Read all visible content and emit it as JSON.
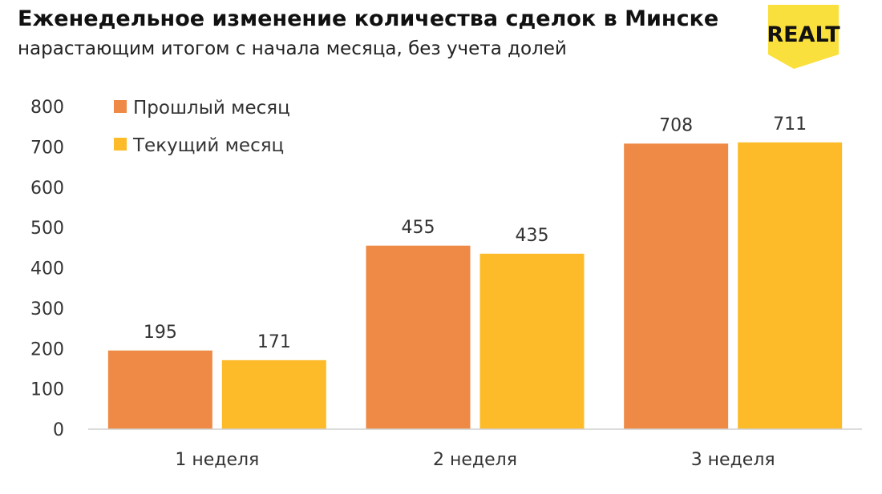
{
  "header": {
    "title": "Еженедельное изменение количества сделок в Минске",
    "subtitle": "нарастающим итогом с начала месяца, без учета долей"
  },
  "logo": {
    "text": "REALT",
    "bg_color": "#FAE03C",
    "text_color": "#111111"
  },
  "chart_data": {
    "type": "bar",
    "title": "Еженедельное изменение количества сделок в Минске",
    "subtitle": "нарастающим итогом с начала месяца, без учета долей",
    "categories": [
      "1 неделя",
      "2 неделя",
      "3 неделя"
    ],
    "series": [
      {
        "name": "Прошлый месяц",
        "values": [
          195,
          455,
          708
        ],
        "color": "#EE8A45"
      },
      {
        "name": "Текущий месяц",
        "values": [
          171,
          435,
          711
        ],
        "color": "#FDBB2A"
      }
    ],
    "ylim": [
      0,
      800
    ],
    "yticks": [
      0,
      100,
      200,
      300,
      400,
      500,
      600,
      700,
      800
    ],
    "grid": false,
    "legend_position": "top-left",
    "data_labels": true
  }
}
